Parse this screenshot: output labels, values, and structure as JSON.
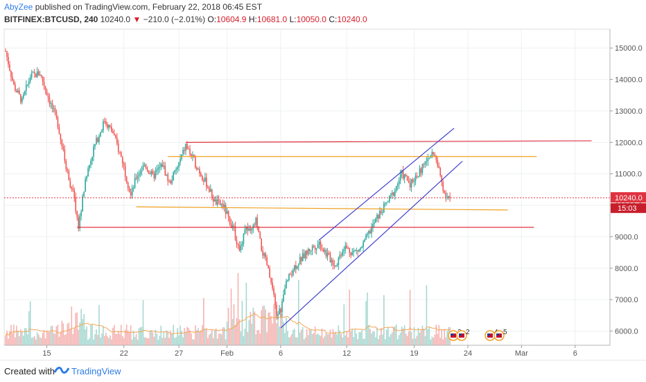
{
  "header": {
    "author": "AbyZee",
    "published": "published on TradingView.com, February 22, 2018 06:45 EST",
    "symbol": "BITFINEX:BTCUSD, 240",
    "last": "10240.0",
    "change_arrow": "▼",
    "change": "−210.0 (−2.01%)",
    "o_label": "O:",
    "o_value": "10604.9",
    "h_label": "H:",
    "h_value": "10681.0",
    "l_label": "L:",
    "l_value": "10050.0",
    "c_label": "C:",
    "c_value": "10240.0"
  },
  "footer": {
    "created_with": "Created with",
    "brand": "TradingView"
  },
  "colors": {
    "up": "#26a69a",
    "down": "#ef5350",
    "up_vol": "#a8d8d1",
    "down_vol": "#f5b3b1",
    "red_line": "#e0323f",
    "orange_line": "#f0a020",
    "channel": "#3f3fcf",
    "ma": "#f5a855",
    "price_tag": "#e0323f",
    "brand": "#2e7ce6"
  },
  "chart_data": {
    "type": "candlestick",
    "x_tick_labels": [
      "15",
      "22",
      "27",
      "Feb",
      "6",
      "12",
      "19",
      "24",
      "Mar",
      "6"
    ],
    "y_tick_labels": [
      "15000.0",
      "14000.0",
      "13000.0",
      "12000.0",
      "11000.0",
      "10000.0",
      "9000.0",
      "8000.0",
      "7000.0",
      "6000.0"
    ],
    "y_ticks": [
      15000,
      14000,
      13000,
      12000,
      11000,
      10000,
      9000,
      8000,
      7000,
      6000
    ],
    "ylim": [
      5550,
      15600
    ],
    "last_price_label": "10240.0",
    "countdown_label": "15:03",
    "last_price": 10240,
    "price_path": [
      {
        "i": 0,
        "p": 14900
      },
      {
        "i": 6,
        "p": 13800
      },
      {
        "i": 12,
        "p": 13300
      },
      {
        "i": 18,
        "p": 14100
      },
      {
        "i": 25,
        "p": 14200
      },
      {
        "i": 33,
        "p": 13200
      },
      {
        "i": 38,
        "p": 12600
      },
      {
        "i": 44,
        "p": 11200
      },
      {
        "i": 50,
        "p": 10200
      },
      {
        "i": 53,
        "p": 9300
      },
      {
        "i": 58,
        "p": 10800
      },
      {
        "i": 64,
        "p": 11800
      },
      {
        "i": 72,
        "p": 12700
      },
      {
        "i": 78,
        "p": 12300
      },
      {
        "i": 85,
        "p": 11400
      },
      {
        "i": 91,
        "p": 10300
      },
      {
        "i": 95,
        "p": 10900
      },
      {
        "i": 101,
        "p": 11300
      },
      {
        "i": 107,
        "p": 10900
      },
      {
        "i": 114,
        "p": 11300
      },
      {
        "i": 119,
        "p": 10700
      },
      {
        "i": 125,
        "p": 11200
      },
      {
        "i": 131,
        "p": 11900
      },
      {
        "i": 137,
        "p": 11400
      },
      {
        "i": 142,
        "p": 11000
      },
      {
        "i": 147,
        "p": 10600
      },
      {
        "i": 152,
        "p": 10100
      },
      {
        "i": 158,
        "p": 10000
      },
      {
        "i": 162,
        "p": 9600
      },
      {
        "i": 166,
        "p": 9200
      },
      {
        "i": 170,
        "p": 8500
      },
      {
        "i": 174,
        "p": 9300
      },
      {
        "i": 178,
        "p": 9100
      },
      {
        "i": 182,
        "p": 9500
      },
      {
        "i": 186,
        "p": 8600
      },
      {
        "i": 190,
        "p": 8100
      },
      {
        "i": 194,
        "p": 7300
      },
      {
        "i": 197,
        "p": 6500
      },
      {
        "i": 200,
        "p": 6700
      },
      {
        "i": 204,
        "p": 7500
      },
      {
        "i": 209,
        "p": 8000
      },
      {
        "i": 215,
        "p": 8300
      },
      {
        "i": 221,
        "p": 8600
      },
      {
        "i": 228,
        "p": 8800
      },
      {
        "i": 234,
        "p": 8400
      },
      {
        "i": 240,
        "p": 8100
      },
      {
        "i": 246,
        "p": 8700
      },
      {
        "i": 252,
        "p": 8500
      },
      {
        "i": 258,
        "p": 8600
      },
      {
        "i": 264,
        "p": 9100
      },
      {
        "i": 270,
        "p": 9600
      },
      {
        "i": 276,
        "p": 10000
      },
      {
        "i": 282,
        "p": 10400
      },
      {
        "i": 288,
        "p": 11000
      },
      {
        "i": 294,
        "p": 10700
      },
      {
        "i": 300,
        "p": 11000
      },
      {
        "i": 306,
        "p": 11400
      },
      {
        "i": 311,
        "p": 11700
      },
      {
        "i": 315,
        "p": 11100
      },
      {
        "i": 319,
        "p": 10400
      },
      {
        "i": 323,
        "p": 10240
      }
    ],
    "drawings": {
      "red_resistance": {
        "from": {
          "i": 131,
          "p": 12000
        },
        "to": {
          "i": 426,
          "p": 12050
        }
      },
      "red_support": {
        "from": {
          "i": 52,
          "p": 9300
        },
        "to": {
          "i": 384,
          "p": 9300
        }
      },
      "orange_upper": {
        "from": {
          "i": 118,
          "p": 11550
        },
        "to": {
          "i": 386,
          "p": 11550
        }
      },
      "orange_lower": {
        "from": {
          "i": 95,
          "p": 9950
        },
        "to": {
          "i": 365,
          "p": 9850
        }
      },
      "channel_lower": {
        "from": {
          "i": 200,
          "p": 6100
        },
        "to": {
          "i": 332,
          "p": 11400
        }
      },
      "channel_upper": {
        "from": {
          "i": 228,
          "p": 8900
        },
        "to": {
          "i": 326,
          "p": 12450
        }
      }
    },
    "annotations": [
      "2",
      "2",
      "4",
      "5"
    ]
  }
}
